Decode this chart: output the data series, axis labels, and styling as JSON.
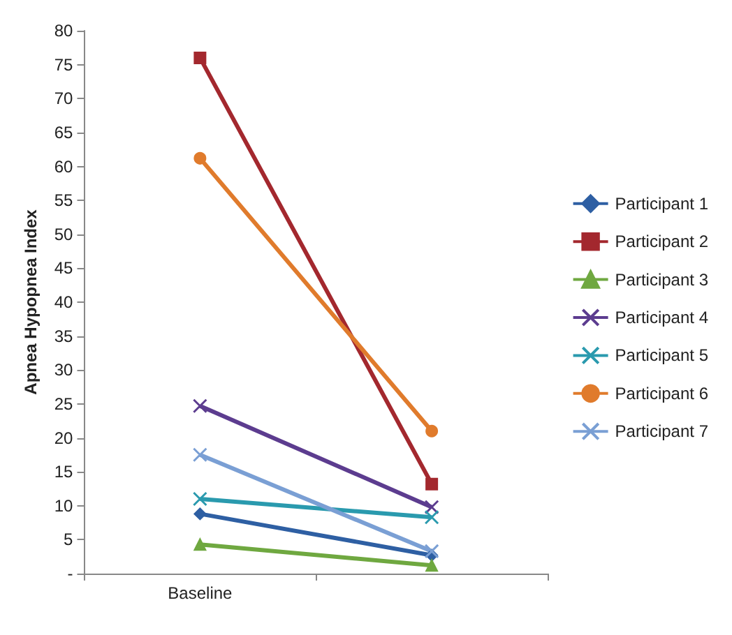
{
  "chart_data": {
    "type": "line",
    "ylabel": "Apnea Hypopnea Index",
    "categories": [
      "Baseline",
      null
    ],
    "series": [
      {
        "name": "Participant 1",
        "color": "#2e5fa3",
        "marker": "diamond",
        "values": [
          8.8,
          2.7
        ]
      },
      {
        "name": "Participant 2",
        "color": "#a3282e",
        "marker": "square",
        "values": [
          76,
          13.2
        ]
      },
      {
        "name": "Participant 3",
        "color": "#6fa840",
        "marker": "triangle",
        "values": [
          4.3,
          1.2
        ]
      },
      {
        "name": "Participant 4",
        "color": "#5c3c8f",
        "marker": "cross",
        "values": [
          24.7,
          9.8
        ]
      },
      {
        "name": "Participant 5",
        "color": "#2a9aae",
        "marker": "cross",
        "values": [
          11,
          8.3
        ]
      },
      {
        "name": "Participant 6",
        "color": "#e07b2c",
        "marker": "circle",
        "values": [
          61.2,
          21
        ]
      },
      {
        "name": "Participant 7",
        "color": "#7a9fd4",
        "marker": "cross",
        "values": [
          17.5,
          3.3
        ]
      }
    ],
    "ylim": [
      0,
      80
    ],
    "yticks": [
      {
        "value": 0,
        "label": "-"
      },
      5,
      10,
      15,
      20,
      25,
      30,
      35,
      40,
      45,
      50,
      55,
      60,
      65,
      70,
      75,
      80
    ],
    "grid": false,
    "legend": "right"
  }
}
